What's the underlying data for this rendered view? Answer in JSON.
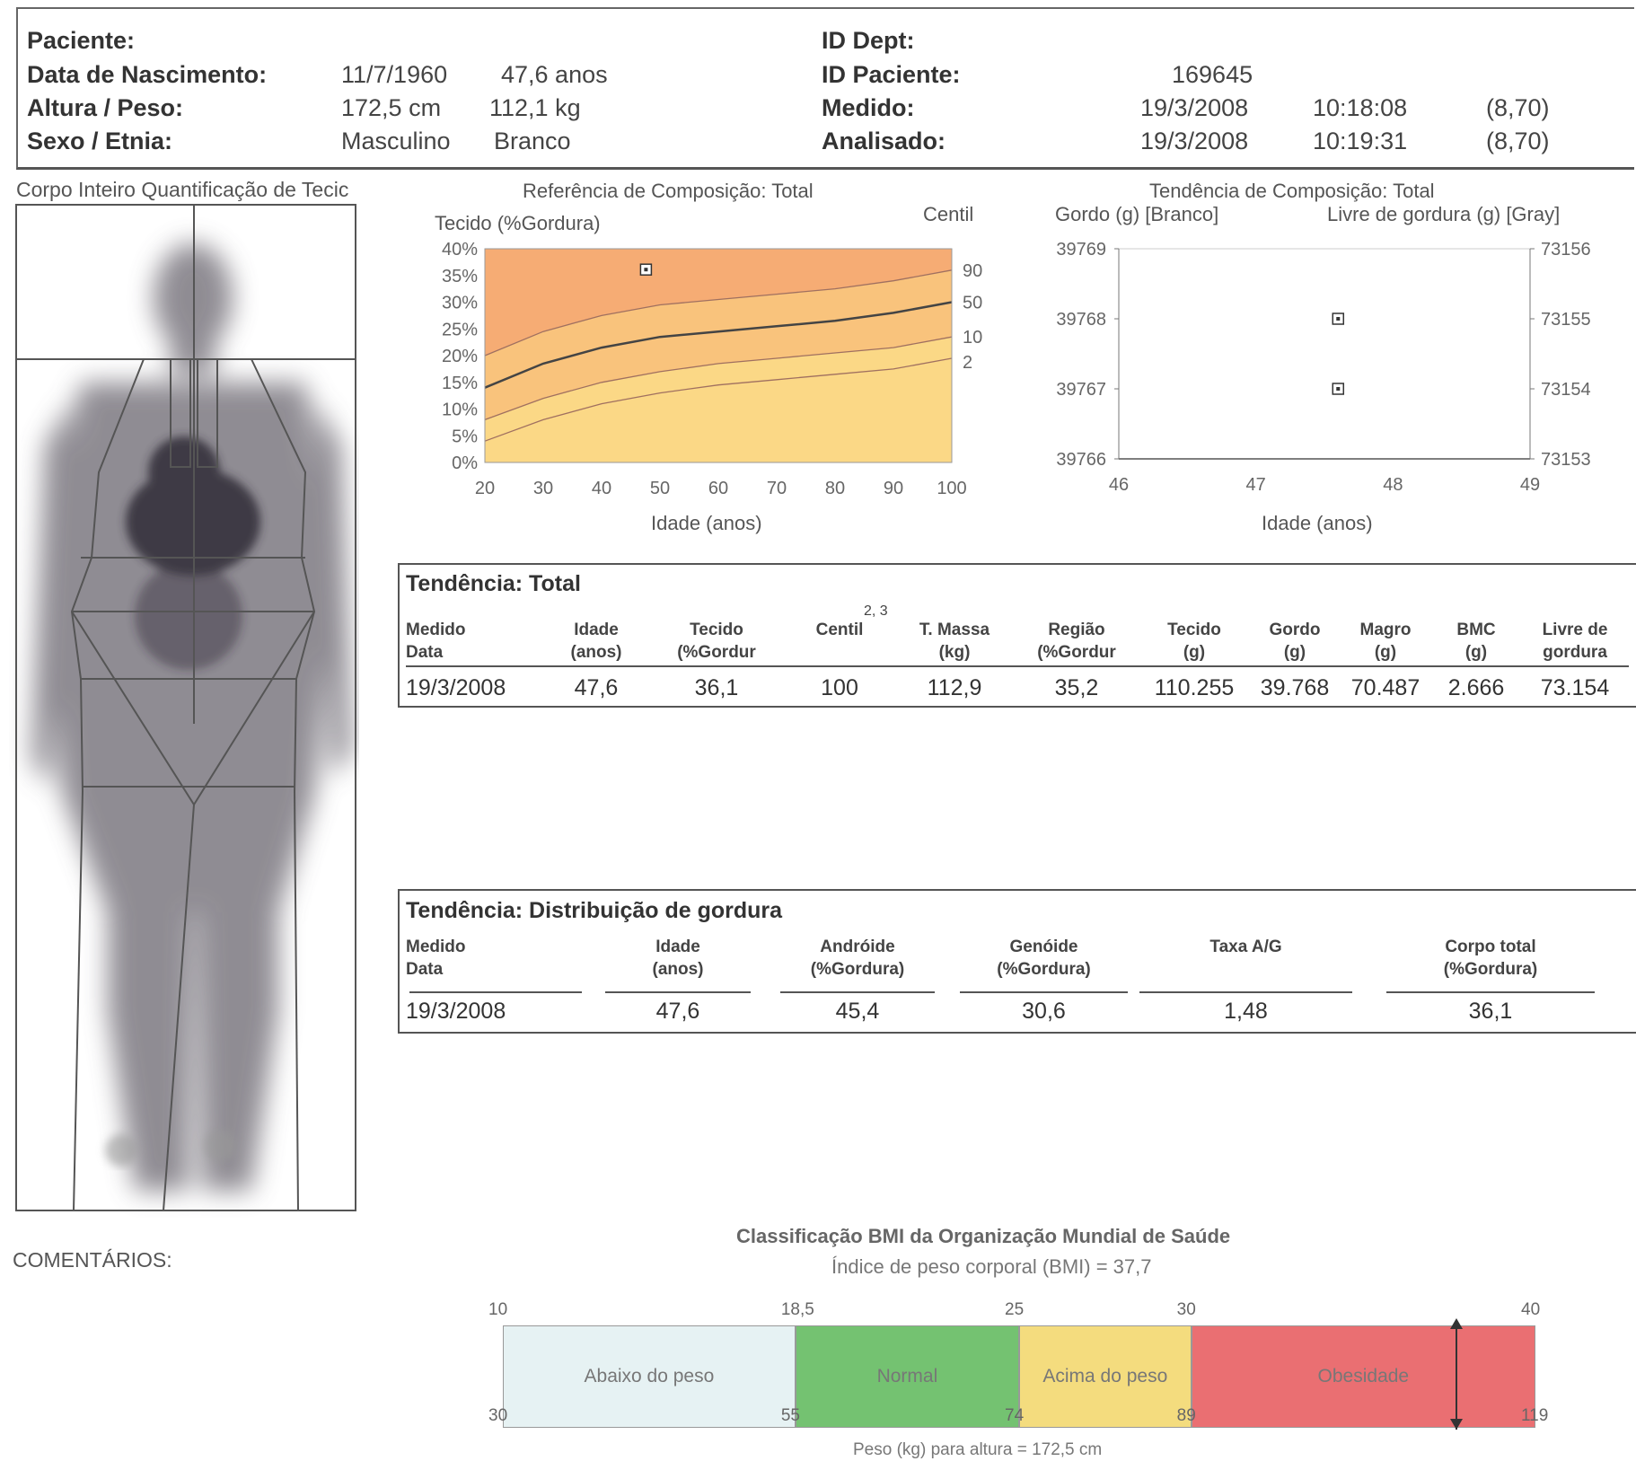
{
  "header": {
    "paciente_label": "Paciente:",
    "nascimento_label": "Data de Nascimento:",
    "nascimento_date": "11/7/1960",
    "nascimento_age": "47,6 anos",
    "altura_label": "Altura / Peso:",
    "altura_value": "172,5 cm",
    "peso_value": "112,1 kg",
    "sexo_label": "Sexo / Etnia:",
    "sexo_value": "Masculino",
    "etnia_value": "Branco",
    "iddept_label": "ID Dept:",
    "idpaciente_label": "ID Paciente:",
    "idpaciente_value": "169645",
    "medido_label": "Medido:",
    "medido_date": "19/3/2008",
    "medido_time": "10:18:08",
    "medido_code": "(8,70)",
    "analisado_label": "Analisado:",
    "analisado_date": "19/3/2008",
    "analisado_time": "10:19:31",
    "analisado_code": "(8,70)"
  },
  "body_scan": {
    "title": "Corpo Inteiro Quantificação de Tecic"
  },
  "comentarios": "COMENTÁRIOS:",
  "ref_chart": {
    "title": "Referência de Composição: Total",
    "ylabel": "Tecido (%Gordura)",
    "centil_label": "Centil",
    "xlabel": "Idade (anos)",
    "yticks": [
      "40%",
      "35%",
      "30%",
      "25%",
      "20%",
      "15%",
      "10%",
      "5%",
      "0%"
    ],
    "xticks": [
      "20",
      "30",
      "40",
      "50",
      "60",
      "70",
      "80",
      "90",
      "100"
    ],
    "centil_ticks": [
      "90",
      "50",
      "10",
      "2"
    ]
  },
  "trend_chart": {
    "title": "Tendência de Composição: Total",
    "left_label": "Gordo (g) [Branco]",
    "right_label": "Livre de gordura (g) [Gray]",
    "xlabel": "Idade (anos)",
    "yleft": [
      "39769",
      "39768",
      "39767",
      "39766"
    ],
    "yright": [
      "73156",
      "73155",
      "73154",
      "73153"
    ],
    "xticks": [
      "46",
      "47",
      "48",
      "49"
    ]
  },
  "chart_data": [
    {
      "type": "line",
      "title": "Referência de Composição: Total",
      "xlabel": "Idade (anos)",
      "ylabel": "Tecido (%Gordura)",
      "xlim": [
        20,
        100
      ],
      "ylim": [
        0,
        40
      ],
      "x": [
        20,
        30,
        40,
        50,
        60,
        70,
        80,
        90,
        100
      ],
      "series": [
        {
          "name": "90",
          "values": [
            20,
            24.5,
            27.5,
            29.5,
            30.5,
            31.5,
            32.5,
            34,
            36
          ]
        },
        {
          "name": "50",
          "values": [
            14,
            18.5,
            21.5,
            23.5,
            24.5,
            25.5,
            26.5,
            28,
            30
          ]
        },
        {
          "name": "10",
          "values": [
            8,
            12,
            15,
            17,
            18.5,
            19.5,
            20.5,
            21.5,
            23.5
          ]
        },
        {
          "name": "2",
          "values": [
            4,
            8,
            11,
            13,
            14.5,
            15.5,
            16.5,
            17.5,
            19.5
          ]
        }
      ],
      "points": [
        {
          "x": 47.6,
          "y": 36.1
        }
      ]
    },
    {
      "type": "scatter",
      "title": "Tendência de Composição: Total",
      "xlabel": "Idade (anos)",
      "xlim": [
        46,
        49
      ],
      "ylim_left": [
        39766,
        39769
      ],
      "ylim_right": [
        73153,
        73156
      ],
      "series": [
        {
          "name": "Gordo (g) [Branco]",
          "x": [
            47.6
          ],
          "values": [
            39768
          ]
        },
        {
          "name": "Livre de gordura (g) [Gray]",
          "x": [
            47.6
          ],
          "values": [
            73154
          ]
        }
      ]
    }
  ],
  "total_table": {
    "title": "Tendência: Total",
    "superscript": "2, 3",
    "headers": [
      [
        "Medido",
        "Data"
      ],
      [
        "Idade",
        "(anos)"
      ],
      [
        "Tecido",
        "(%Gordur"
      ],
      [
        "Centil",
        ""
      ],
      [
        "T. Massa",
        "(kg)"
      ],
      [
        "Região",
        "(%Gordur"
      ],
      [
        "Tecido",
        "(g)"
      ],
      [
        "Gordo",
        "(g)"
      ],
      [
        "Magro",
        "(g)"
      ],
      [
        "BMC",
        "(g)"
      ],
      [
        "Livre de",
        "gordura"
      ]
    ],
    "row": [
      "19/3/2008",
      "47,6",
      "36,1",
      "100",
      "112,9",
      "35,2",
      "110.255",
      "39.768",
      "70.487",
      "2.666",
      "73.154"
    ]
  },
  "dist_table": {
    "title": "Tendência: Distribuição de gordura",
    "headers": [
      [
        "Medido",
        "Data"
      ],
      [
        "Idade",
        "(anos)"
      ],
      [
        "Andróide",
        "(%Gordura)"
      ],
      [
        "Genóide",
        "(%Gordura)"
      ],
      [
        "Taxa A/G",
        ""
      ],
      [
        "Corpo total",
        "(%Gordura)"
      ]
    ],
    "row": [
      "19/3/2008",
      "47,6",
      "45,4",
      "30,6",
      "1,48",
      "36,1"
    ]
  },
  "bmi": {
    "title": "Classificação BMI da Organização Mundial de Saúde",
    "subtitle": "Índice de peso corporal (BMI) = 37,7",
    "top_ticks": [
      "10",
      "18,5",
      "25",
      "30",
      "40"
    ],
    "bottom_ticks": [
      "30",
      "55",
      "74",
      "89",
      "119"
    ],
    "segments": [
      "Abaixo do peso",
      "Normal",
      "Acima do peso",
      "Obesidade"
    ],
    "footer": "Peso (kg) para altura = 172,5 cm",
    "value": 37.7,
    "colors": [
      "#e6f2f3",
      "#74c271",
      "#f4dc7e",
      "#ea6f72"
    ]
  }
}
